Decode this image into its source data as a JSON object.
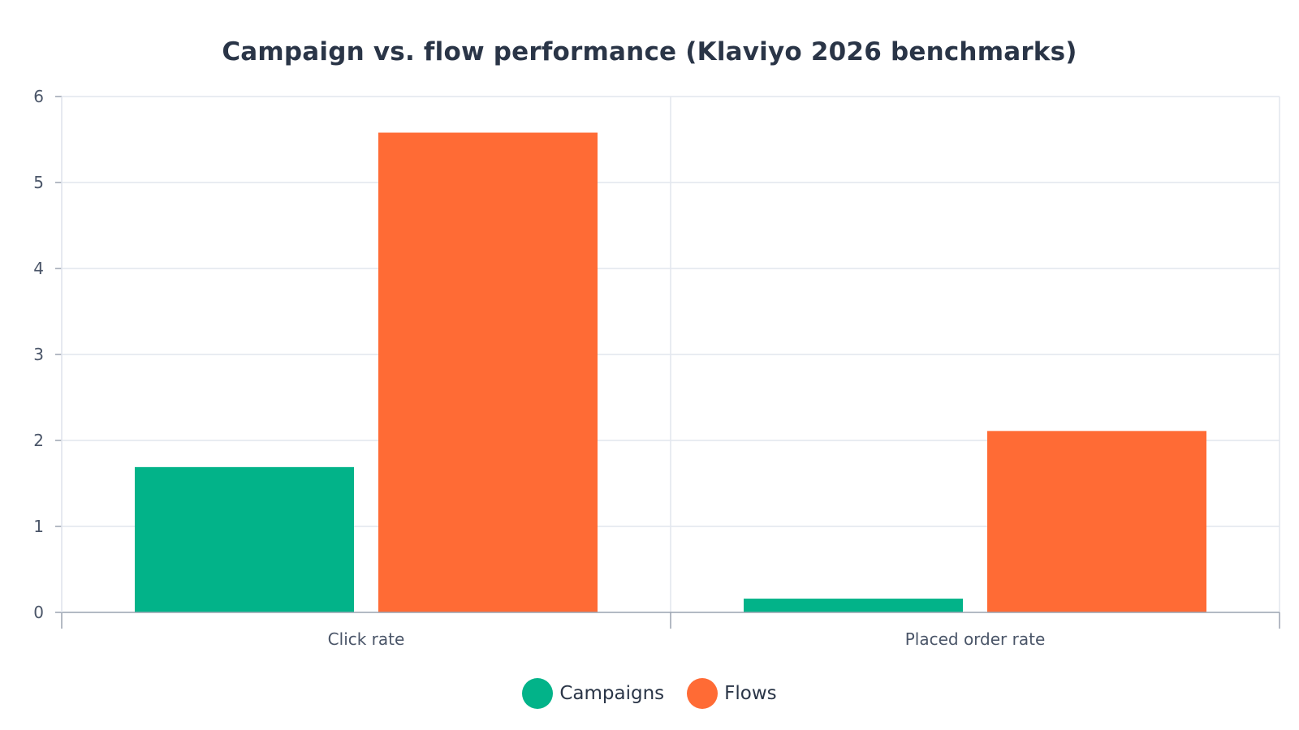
{
  "chart_data": {
    "type": "bar",
    "title": "Campaign vs. flow performance (Klaviyo 2026 benchmarks)",
    "xlabel": "",
    "ylabel": "",
    "categories": [
      "Click rate",
      "Placed order rate"
    ],
    "series": [
      {
        "name": "Campaigns",
        "color": "#02b389",
        "values": [
          1.69,
          0.16
        ]
      },
      {
        "name": "Flows",
        "color": "#ff6b35",
        "values": [
          5.58,
          2.11
        ]
      }
    ],
    "ylim": [
      0,
      6
    ],
    "yticks": [
      "0",
      "1",
      "2",
      "3",
      "4",
      "5",
      "6"
    ],
    "grid": true,
    "legend_position": "bottom-center"
  },
  "colors": {
    "grid": "#e2e6ee",
    "axis": "#9aa3b0",
    "title": "#2a3547"
  }
}
